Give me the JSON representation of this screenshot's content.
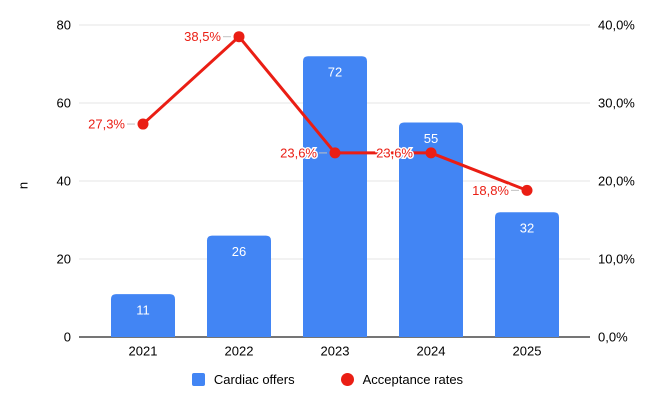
{
  "chart_data": {
    "type": "combo",
    "title": "",
    "categories": [
      "2021",
      "2022",
      "2023",
      "2024",
      "2025"
    ],
    "series": [
      {
        "name": "Cardiac offers",
        "type": "bar",
        "axis": "left",
        "values": [
          11,
          26,
          72,
          55,
          32
        ],
        "value_labels": [
          "11",
          "26",
          "72",
          "55",
          "32"
        ],
        "color": "#4285f4",
        "label_color": "#ffffff"
      },
      {
        "name": "Acceptance rates",
        "type": "line",
        "axis": "right",
        "values": [
          27.3,
          38.5,
          23.6,
          23.6,
          18.8
        ],
        "value_labels": [
          "27,3%",
          "38,5%",
          "23,6%",
          "23,6%",
          "18,8%"
        ],
        "color": "#ea1e14",
        "label_color": "#ea1e14"
      }
    ],
    "left_axis": {
      "title": "n",
      "min": 0,
      "max": 80,
      "ticks": [
        "0",
        "20",
        "40",
        "60",
        "80"
      ]
    },
    "right_axis": {
      "title": "",
      "min": 0,
      "max": 40,
      "ticks": [
        "0,0%",
        "10,0%",
        "20,0%",
        "30,0%",
        "40,0%"
      ]
    },
    "grid": true,
    "legend_position": "bottom",
    "colors": {
      "gridline": "#e6e6e6",
      "axis_line": "#757575",
      "tick_text": "#000000",
      "leader_line": "#c2c2c2",
      "background": "#ffffff"
    }
  },
  "legend": {
    "items": [
      {
        "label": "Cardiac offers",
        "color": "#4285f4",
        "shape": "square"
      },
      {
        "label": "Acceptance rates",
        "color": "#ea1e14",
        "shape": "circle"
      }
    ]
  }
}
